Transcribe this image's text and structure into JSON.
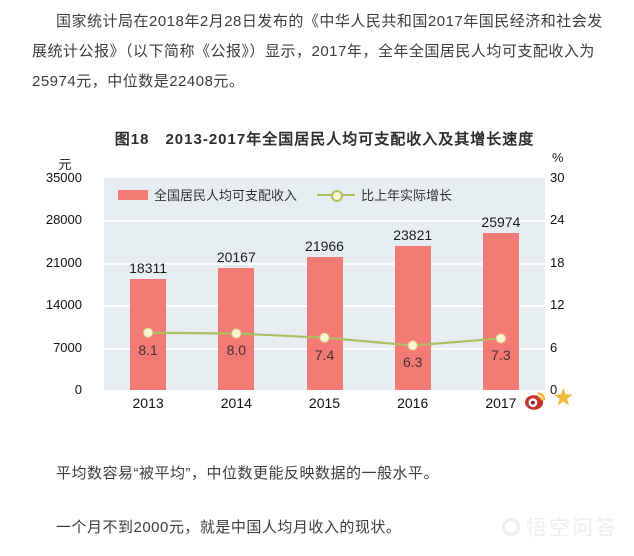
{
  "article": {
    "paragraphs": {
      "intro": "国家统计局在2018年2月28日发布的《中华人民共和国2017年国民经济和社会发展统计公报》（以下简称《公报》）显示，2017年，全年全国居民人均可支配收入为25974元，中位数是22408元。",
      "average": "平均数容易“被平均”，中位数更能反映数据的一般水平。",
      "monthly": "一个月不到2000元，就是中国人均月收入的现状。"
    },
    "watermark_text": "悟空问答"
  },
  "chart_data": {
    "type": "bar",
    "title": "图18　2013-2017年全国居民人均可支配收入及其增长速度",
    "categories": [
      "2013",
      "2014",
      "2015",
      "2016",
      "2017"
    ],
    "series": [
      {
        "name": "全国居民人均可支配收入",
        "type": "bar",
        "axis": "left",
        "values": [
          18311,
          20167,
          21966,
          23821,
          25974
        ],
        "labels": [
          "18311",
          "20167",
          "21966",
          "23821",
          "25974"
        ],
        "color": "#f47a75"
      },
      {
        "name": "比上年实际增长",
        "type": "line",
        "axis": "right",
        "values": [
          8.1,
          8.0,
          7.4,
          6.3,
          7.3
        ],
        "labels": [
          "8.1",
          "8.0",
          "7.4",
          "6.3",
          "7.3"
        ],
        "color": "#aebc64",
        "marker_fill": "#fbf5cf",
        "marker_stroke": "#d8cd8e"
      }
    ],
    "left_axis": {
      "unit": "元",
      "ticks": [
        35000,
        28000,
        21000,
        14000,
        7000,
        0
      ],
      "min": 0,
      "max": 35000
    },
    "right_axis": {
      "unit": "%",
      "ticks": [
        30,
        24,
        18,
        12,
        6,
        0
      ],
      "min": 0,
      "max": 30
    },
    "plot_bg": "#e7eef1",
    "grid": true,
    "legend_position": "top-left-inside",
    "icons": [
      "weibo-icon",
      "star-icon"
    ]
  }
}
